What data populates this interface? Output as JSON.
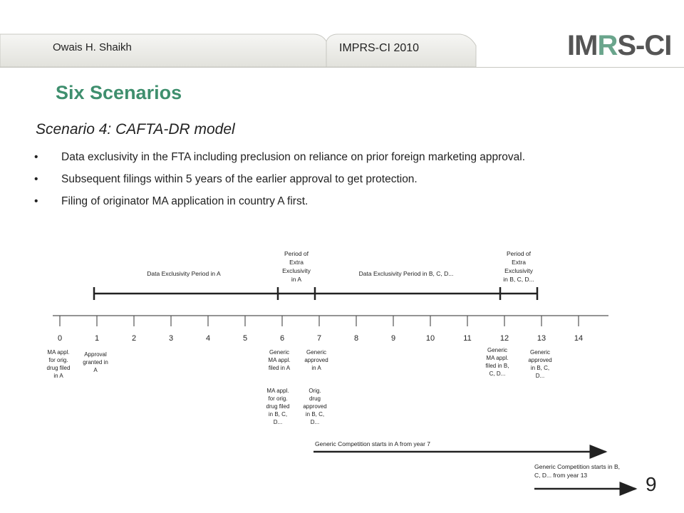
{
  "header": {
    "author": "Owais H. Shaikh",
    "conference": "IMPRS-CI 2010",
    "logo_text": "IMRS-CI",
    "accent_color": "#3f8f6e"
  },
  "title": "Six Scenarios",
  "subtitle": "Scenario 4: CAFTA-DR model",
  "bullets": [
    "Data exclusivity in the FTA including preclusion on reliance on prior foreign marketing approval.",
    "Subsequent filings within 5 years of the earlier approval to get protection.",
    "Filing of originator MA application in country A first."
  ],
  "diagram": {
    "years": [
      "0",
      "1",
      "2",
      "3",
      "4",
      "5",
      "6",
      "7",
      "8",
      "9",
      "10",
      "11",
      "12",
      "13",
      "14"
    ],
    "periods": {
      "data_excl_a": "Data Exclusivity Period in A",
      "extra_excl_a": [
        "Period of",
        "Extra",
        "Exclusivity",
        "in A"
      ],
      "data_excl_bcd": "Data Exclusivity Period in B, C, D...",
      "extra_excl_bcd": [
        "Period of",
        "Extra",
        "Exclusivity",
        "in B, C, D..."
      ]
    },
    "events": {
      "y0": [
        "MA appl.",
        "for orig.",
        "drug filed",
        "in A"
      ],
      "y1": [
        "Approval",
        "granted in",
        "A"
      ],
      "y6a": [
        "Generic",
        "MA appl.",
        "filed in A"
      ],
      "y6b": [
        "MA appl.",
        "for orig.",
        "drug filed",
        "in B, C,",
        "D..."
      ],
      "y7a": [
        "Generic",
        "approved",
        "in A"
      ],
      "y7b": [
        "Orig.",
        "drug",
        "approved",
        "in B, C,",
        "D..."
      ],
      "y12": [
        "Generic",
        "MA appl.",
        "filed in B,",
        "C, D..."
      ],
      "y13": [
        "Generic",
        "approved",
        "in B, C,",
        "D..."
      ]
    },
    "competition_a": "Generic Competition starts in A from year 7",
    "competition_bcd": [
      "Generic Competition starts in B,",
      "C, D... from year 13"
    ]
  },
  "page_number": "9"
}
